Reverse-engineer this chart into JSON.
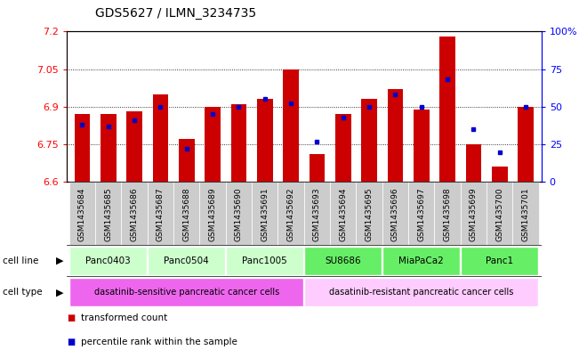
{
  "title": "GDS5627 / ILMN_3234735",
  "samples": [
    "GSM1435684",
    "GSM1435685",
    "GSM1435686",
    "GSM1435687",
    "GSM1435688",
    "GSM1435689",
    "GSM1435690",
    "GSM1435691",
    "GSM1435692",
    "GSM1435693",
    "GSM1435694",
    "GSM1435695",
    "GSM1435696",
    "GSM1435697",
    "GSM1435698",
    "GSM1435699",
    "GSM1435700",
    "GSM1435701"
  ],
  "transformed_counts": [
    6.87,
    6.87,
    6.88,
    6.95,
    6.77,
    6.9,
    6.91,
    6.93,
    7.05,
    6.71,
    6.87,
    6.93,
    6.97,
    6.89,
    7.18,
    6.75,
    6.66,
    6.9
  ],
  "percentile_ranks": [
    38,
    37,
    41,
    50,
    22,
    45,
    50,
    55,
    52,
    27,
    43,
    50,
    58,
    50,
    68,
    35,
    20,
    50
  ],
  "y_min": 6.6,
  "y_max": 7.2,
  "y_ticks": [
    6.6,
    6.75,
    6.9,
    7.05,
    7.2
  ],
  "percentile_y_ticks": [
    0,
    25,
    50,
    75,
    100
  ],
  "bar_color": "#cc0000",
  "dot_color": "#0000cc",
  "bar_width": 0.6,
  "cell_lines": [
    {
      "name": "Panc0403",
      "start": 0,
      "end": 3,
      "color": "#ccffcc"
    },
    {
      "name": "Panc0504",
      "start": 3,
      "end": 6,
      "color": "#ccffcc"
    },
    {
      "name": "Panc1005",
      "start": 6,
      "end": 9,
      "color": "#ccffcc"
    },
    {
      "name": "SU8686",
      "start": 9,
      "end": 12,
      "color": "#66ee66"
    },
    {
      "name": "MiaPaCa2",
      "start": 12,
      "end": 15,
      "color": "#66ee66"
    },
    {
      "name": "Panc1",
      "start": 15,
      "end": 18,
      "color": "#66ee66"
    }
  ],
  "cell_types": [
    {
      "name": "dasatinib-sensitive pancreatic cancer cells",
      "start": 0,
      "end": 9,
      "color": "#ee66ee"
    },
    {
      "name": "dasatinib-resistant pancreatic cancer cells",
      "start": 9,
      "end": 18,
      "color": "#ffccff"
    }
  ],
  "legend_items": [
    {
      "label": "transformed count",
      "color": "#cc0000"
    },
    {
      "label": "percentile rank within the sample",
      "color": "#0000cc"
    }
  ],
  "bg_color": "#ffffff",
  "title_fontsize": 10,
  "tick_fontsize": 6.5,
  "label_fontsize": 7.5
}
